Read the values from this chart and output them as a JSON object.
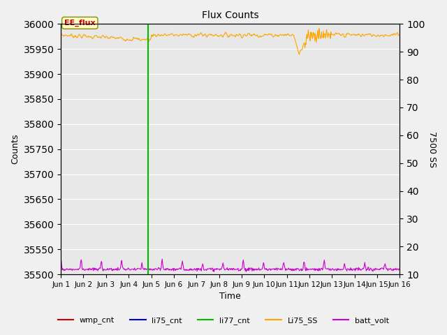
{
  "title": "Flux Counts",
  "ylabel_left": "Counts",
  "ylabel_right": "7500 SS",
  "xlabel": "Time",
  "ylim_left": [
    35500,
    36000
  ],
  "ylim_right": [
    10,
    100
  ],
  "yticks_left": [
    35500,
    35550,
    35600,
    35650,
    35700,
    35750,
    35800,
    35850,
    35900,
    35950,
    36000
  ],
  "yticks_right": [
    10,
    20,
    30,
    40,
    50,
    60,
    70,
    80,
    90,
    100
  ],
  "xtick_labels": [
    "Jun 1",
    "Jun 2",
    "Jun 3",
    "Jun 4",
    "Jun 5",
    "Jun 6",
    "Jun 7",
    "Jun 8",
    "Jun 9",
    "Jun 10",
    "Jun 11",
    "Jun 12",
    "Jun 13",
    "Jun 14",
    "Jun 15",
    "Jun 16"
  ],
  "vline_x": 3.85,
  "vline_color": "#00bb00",
  "li77_cnt_color": "#00bb00",
  "orange_line_color": "#FFA500",
  "purple_line_color": "#CC00CC",
  "annotation_text": "EE_flux",
  "bg_color": "#e8e8e8",
  "grid_color": "#ffffff",
  "legend_items": [
    {
      "label": "wmp_cnt",
      "color": "#cc0000",
      "linestyle": "-"
    },
    {
      "label": "li75_cnt",
      "color": "#0000cc",
      "linestyle": "-"
    },
    {
      "label": "li77_cnt",
      "color": "#00bb00",
      "linestyle": "-"
    },
    {
      "label": "Li75_SS",
      "color": "#FFA500",
      "linestyle": "-"
    },
    {
      "label": "batt_volt",
      "color": "#CC00CC",
      "linestyle": "-"
    }
  ]
}
